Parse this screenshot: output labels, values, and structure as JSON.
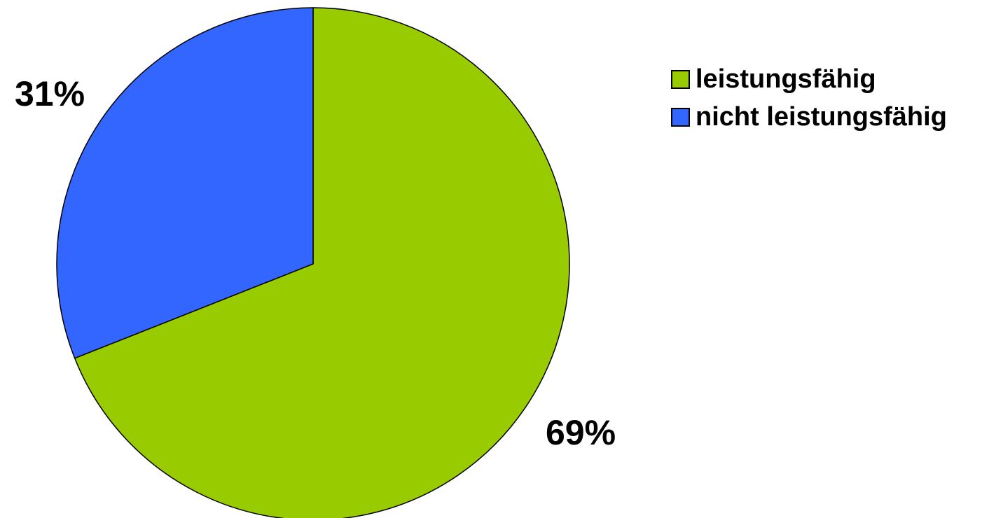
{
  "chart_data": {
    "type": "pie",
    "slices": [
      {
        "name": "leistungsfähig",
        "value": 69,
        "label": "69%",
        "color": "#99CC00"
      },
      {
        "name": "nicht leistungsfähig",
        "value": 31,
        "label": "31%",
        "color": "#3366FF"
      }
    ],
    "start_angle_deg": 0,
    "direction": "clockwise",
    "legend": {
      "position": "top-right",
      "items": [
        {
          "label": "leistungsfähig",
          "color": "#99CC00"
        },
        {
          "label": "nicht leistungsfähig",
          "color": "#3366FF"
        }
      ]
    },
    "title": ""
  }
}
